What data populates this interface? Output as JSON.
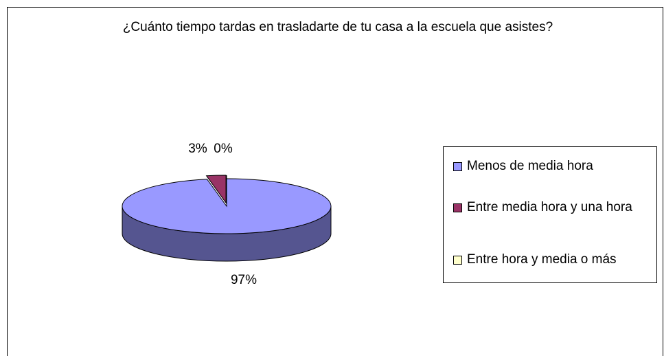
{
  "chart_data": {
    "type": "pie3d",
    "title": "¿Cuánto tiempo tardas en trasladarte de tu casa a la escuela que asistes?",
    "categories": [
      "Menos de media hora",
      "Entre media hora y una hora",
      "Entre hora y media o más"
    ],
    "values": [
      97,
      3,
      0
    ],
    "value_labels": [
      "97%",
      "3%",
      "0%"
    ],
    "colors": [
      "#9999ff",
      "#993366",
      "#ffffcc"
    ],
    "side_color": "#555590",
    "legend": "right"
  }
}
